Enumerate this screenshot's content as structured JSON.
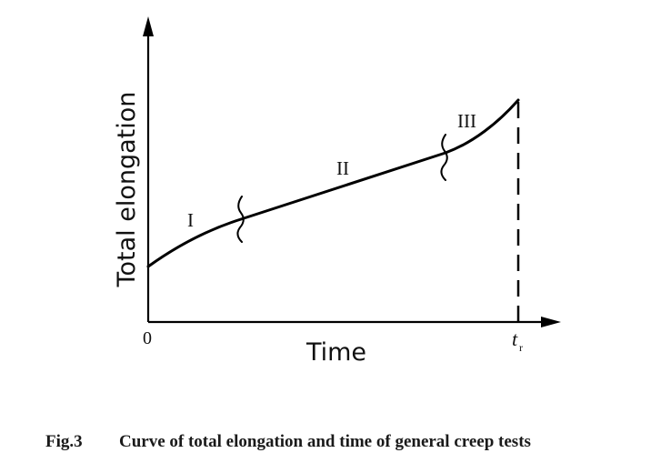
{
  "diagram": {
    "y_axis_label": "Total elongation",
    "x_axis_label": "Time",
    "origin_label": "0",
    "rupture_time_label": "t",
    "rupture_time_subscript": "r",
    "stage_labels": [
      "I",
      "II",
      "III"
    ]
  },
  "caption": {
    "figure_number": "Fig.3",
    "text": "Curve of total elongation and time of general creep tests"
  }
}
